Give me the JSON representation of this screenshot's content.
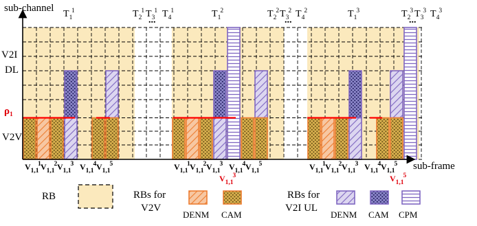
{
  "axes": {
    "y_label": "sub-channel",
    "x_label": "sub-frame",
    "region_v2i": [
      "V2I",
      "DL"
    ],
    "rho": {
      "base": "ρ",
      "sub": "1"
    },
    "region_v2v": "V2V"
  },
  "frames": [
    {
      "id": 1,
      "labels": [
        {
          "b": "T",
          "sub": "1",
          "sup": "1"
        },
        {
          "b": "T",
          "sub": "2",
          "sup": "1"
        },
        {
          "b": "T",
          "sub": "3",
          "sup": "1"
        },
        {
          "b": "T",
          "sub": "4",
          "sup": "1"
        }
      ],
      "vehicles": [
        {
          "b": "V",
          "sub": "1,1",
          "sup": "1"
        },
        {
          "b": "V",
          "sub": "1,1",
          "sup": "2"
        },
        {
          "b": "V",
          "sub": "1,1",
          "sup": "3"
        },
        {
          "b": "V",
          "sub": "1,1",
          "sup": "4"
        },
        {
          "b": "V",
          "sub": "1,1",
          "sup": "5"
        }
      ],
      "highlight": null
    },
    {
      "id": 2,
      "labels": [
        {
          "b": "T",
          "sub": "1",
          "sup": "2"
        },
        {
          "b": "T",
          "sub": "2",
          "sup": "2"
        },
        {
          "b": "T",
          "sub": "3",
          "sup": "2"
        },
        {
          "b": "T",
          "sub": "4",
          "sup": "2"
        }
      ],
      "vehicles": [
        {
          "b": "V",
          "sub": "1,1",
          "sup": "1"
        },
        {
          "b": "V",
          "sub": "1,1",
          "sup": "2"
        },
        {
          "b": "V",
          "sub": "1,1",
          "sup": "3"
        },
        {
          "b": "V",
          "sub": "1,1",
          "sup": "4"
        },
        {
          "b": "V",
          "sub": "1,1",
          "sup": "5"
        }
      ],
      "highlight": {
        "b": "V",
        "sub": "1,1",
        "sup": "3"
      }
    },
    {
      "id": 3,
      "labels": [
        {
          "b": "T",
          "sub": "1",
          "sup": "3"
        },
        {
          "b": "T",
          "sub": "2",
          "sup": "3"
        },
        {
          "b": "T",
          "sub": "3",
          "sup": "3"
        },
        {
          "b": "T",
          "sub": "4",
          "sup": "3"
        }
      ],
      "vehicles": [
        {
          "b": "V",
          "sub": "1,1",
          "sup": "1"
        },
        {
          "b": "V",
          "sub": "1,1",
          "sup": "2"
        },
        {
          "b": "V",
          "sub": "1,1",
          "sup": "3"
        },
        {
          "b": "V",
          "sub": "1,1",
          "sup": "4"
        },
        {
          "b": "V",
          "sub": "1,1",
          "sup": "5"
        }
      ],
      "highlight": {
        "b": "V",
        "sub": "1,1",
        "sup": "5"
      }
    }
  ],
  "dots": "...",
  "legend": {
    "rb": "RB",
    "rbs_v2v": [
      "RBs for",
      "V2V"
    ],
    "rbs_v2i": [
      "RBs for",
      "V2I UL"
    ],
    "denm": "DENM",
    "cam": "CAM",
    "cpm": "CPM"
  },
  "colors": {
    "rb_fill": "#fbe9bd",
    "orange": "#ed7d31",
    "orange_fill": "#f7c7a2",
    "purple": "#7f67c1",
    "purple_fill": "#c8bfe6",
    "cam_v2v_fill": "#c59a3a",
    "cam_v2i_fill": "#6d6ab3",
    "rho_line": "#ff0000",
    "rho_text": "#e0000b"
  }
}
